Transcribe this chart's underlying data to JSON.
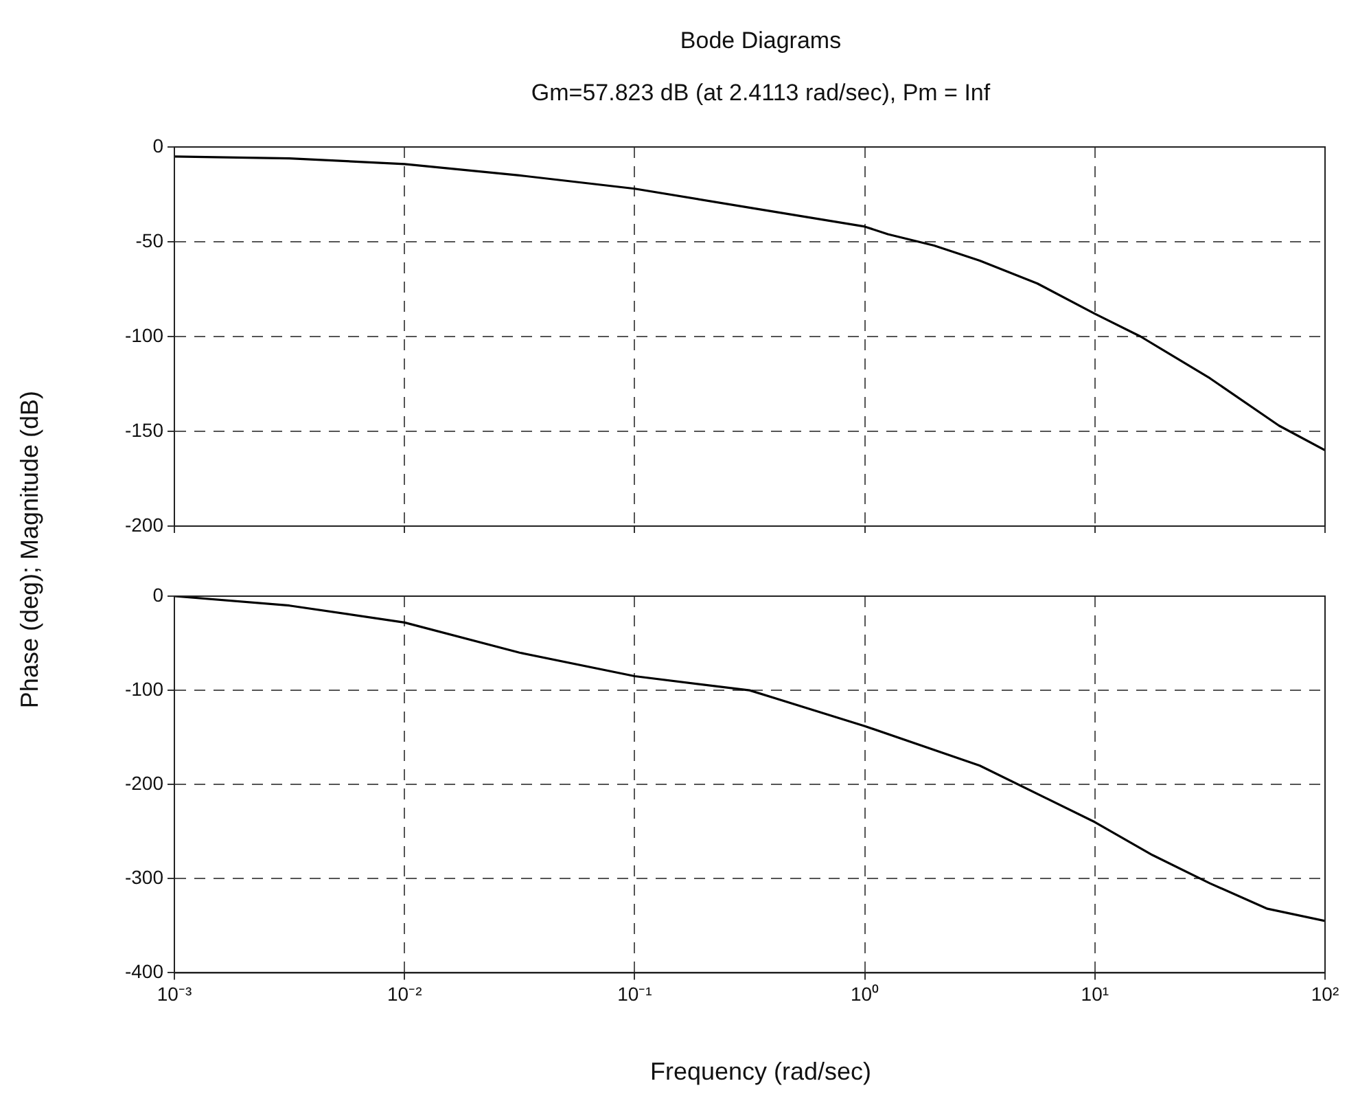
{
  "chart_data": [
    {
      "type": "line",
      "title": "Bode Diagrams",
      "subtitle": "Gm=57.823 dB (at 2.4113 rad/sec), Pm = Inf",
      "ylabel": "Phase (deg); Magnitude (dB)",
      "log": "x",
      "grid": true,
      "line_style": "solid",
      "marker": "none",
      "legend": false,
      "tick_labels": "y",
      "xlim": [
        0.001,
        100
      ],
      "xticks": [
        {
          "value": 0.001,
          "label": null
        },
        {
          "value": 0.01,
          "label": null
        },
        {
          "value": 0.1,
          "label": null
        },
        {
          "value": 1,
          "label": null
        },
        {
          "value": 10,
          "label": null
        },
        {
          "value": 100,
          "label": null
        }
      ],
      "ylim": [
        -200,
        0
      ],
      "yticks": [
        -200,
        -150,
        -100,
        -50,
        0
      ],
      "series": [
        {
          "color": "#000000",
          "x": [
            0.001,
            0.00316,
            0.01,
            0.0316,
            0.1,
            0.316,
            1,
            1.26,
            2,
            3.16,
            5.62,
            10,
            15.8,
            31.6,
            63.1,
            100
          ],
          "values": [
            -5,
            -6,
            -9,
            -15,
            -22,
            -32,
            -42,
            -46,
            -52,
            -60,
            -72,
            -88,
            -100,
            -122,
            -147,
            -160
          ]
        }
      ]
    },
    {
      "type": "line",
      "xlabel": "Frequency (rad/sec)",
      "log": "x",
      "grid": true,
      "line_style": "solid",
      "marker": "none",
      "legend": false,
      "xlim": [
        0.001,
        100
      ],
      "xticks": [
        {
          "value": 0.001,
          "label": "10⁻³"
        },
        {
          "value": 0.01,
          "label": "10⁻²"
        },
        {
          "value": 0.1,
          "label": "10⁻¹"
        },
        {
          "value": 1,
          "label": "10⁰"
        },
        {
          "value": 10,
          "label": "10¹"
        },
        {
          "value": 100,
          "label": "10²"
        }
      ],
      "ylim": [
        -400,
        0
      ],
      "yticks": [
        -400,
        -300,
        -200,
        -100,
        0
      ],
      "series": [
        {
          "color": "#000000",
          "x": [
            0.001,
            0.00316,
            0.01,
            0.0316,
            0.1,
            0.316,
            1,
            3.16,
            10,
            17.8,
            31.6,
            56.2,
            100
          ],
          "values": [
            0,
            -10,
            -28,
            -60,
            -85,
            -100,
            -138,
            -180,
            -240,
            -275,
            -305,
            -332,
            -345
          ]
        }
      ]
    }
  ]
}
